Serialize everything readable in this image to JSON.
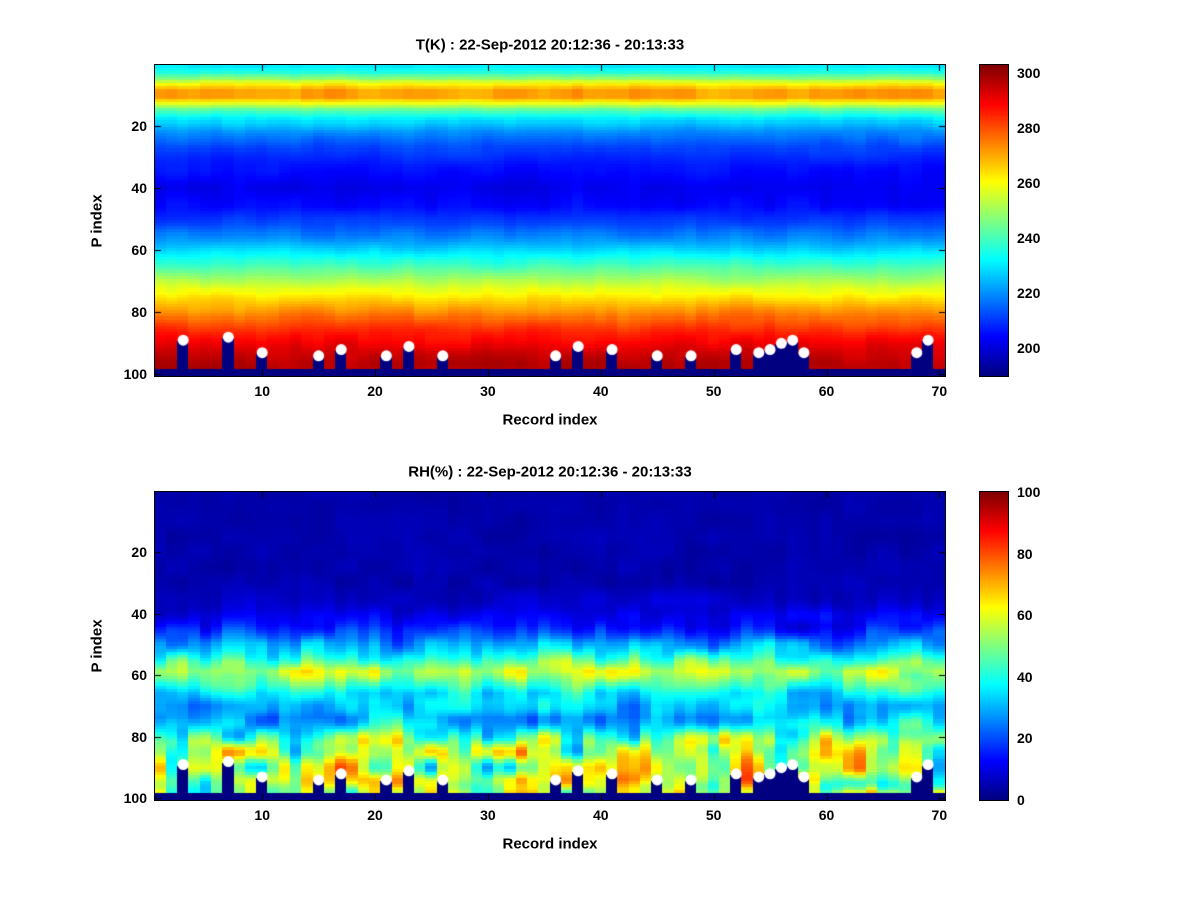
{
  "figure": {
    "background": "#ffffff",
    "text_color": "#000000"
  },
  "chart_data": [
    {
      "type": "heatmap",
      "title": "T(K) : 22-Sep-2012 20:12:36 - 20:13:33",
      "xlabel": "Record index",
      "ylabel": "P index",
      "units": "K",
      "x_range": [
        1,
        70
      ],
      "y_range": [
        1,
        100
      ],
      "y_axis_direction": "down",
      "x_ticks": [
        10,
        20,
        30,
        40,
        50,
        60,
        70
      ],
      "y_ticks": [
        20,
        40,
        60,
        80,
        100
      ],
      "grid": false,
      "colormap": "jet",
      "clim": [
        190,
        303
      ],
      "value_clamp": [
        190,
        303
      ],
      "colorbar_ticks": [
        200,
        220,
        240,
        260,
        280,
        300
      ],
      "colorbar_position": "right",
      "profile_points": [
        [
          1,
          230
        ],
        [
          3,
          236
        ],
        [
          5,
          248
        ],
        [
          7,
          262
        ],
        [
          9,
          271
        ],
        [
          11,
          271
        ],
        [
          13,
          258
        ],
        [
          15,
          243
        ],
        [
          18,
          230
        ],
        [
          22,
          220
        ],
        [
          27,
          212
        ],
        [
          33,
          206
        ],
        [
          40,
          202
        ],
        [
          46,
          205
        ],
        [
          52,
          212
        ],
        [
          57,
          221
        ],
        [
          62,
          232
        ],
        [
          67,
          244
        ],
        [
          72,
          256
        ],
        [
          77,
          267
        ],
        [
          82,
          277
        ],
        [
          87,
          286
        ],
        [
          92,
          293
        ],
        [
          97,
          297
        ],
        [
          100,
          297
        ]
      ],
      "noise_amp_points": [
        [
          1,
          2
        ],
        [
          8,
          4
        ],
        [
          14,
          3
        ],
        [
          30,
          2.5
        ],
        [
          60,
          3
        ],
        [
          80,
          3.5
        ],
        [
          100,
          3
        ]
      ],
      "noise_seed": 11,
      "surface_default_p": 98,
      "below_surface": "no-data-rendered-as-colormap-minimum",
      "surface_markers": {
        "color": "#ffffff",
        "shape": "circle",
        "points": [
          [
            3,
            89
          ],
          [
            7,
            88
          ],
          [
            10,
            93
          ],
          [
            15,
            94
          ],
          [
            17,
            92
          ],
          [
            21,
            94
          ],
          [
            23,
            91
          ],
          [
            26,
            94
          ],
          [
            36,
            94
          ],
          [
            38,
            91
          ],
          [
            41,
            92
          ],
          [
            45,
            94
          ],
          [
            48,
            94
          ],
          [
            52,
            92
          ],
          [
            54,
            93
          ],
          [
            55,
            92
          ],
          [
            56,
            90
          ],
          [
            57,
            89
          ],
          [
            58,
            93
          ],
          [
            68,
            93
          ],
          [
            69,
            89
          ]
        ]
      }
    },
    {
      "type": "heatmap",
      "title": "RH(%) : 22-Sep-2012 20:12:36 - 20:13:33",
      "xlabel": "Record index",
      "ylabel": "P index",
      "units": "%",
      "x_range": [
        1,
        70
      ],
      "y_range": [
        1,
        100
      ],
      "y_axis_direction": "down",
      "x_ticks": [
        10,
        20,
        30,
        40,
        50,
        60,
        70
      ],
      "y_ticks": [
        20,
        40,
        60,
        80,
        100
      ],
      "grid": false,
      "colormap": "jet",
      "clim": [
        0,
        100
      ],
      "value_clamp": [
        0,
        100
      ],
      "colorbar_ticks": [
        0,
        20,
        40,
        60,
        80,
        100
      ],
      "colorbar_position": "right",
      "profile_points": [
        [
          1,
          4
        ],
        [
          30,
          5
        ],
        [
          38,
          8
        ],
        [
          44,
          14
        ],
        [
          48,
          22
        ],
        [
          52,
          33
        ],
        [
          56,
          48
        ],
        [
          59,
          55
        ],
        [
          62,
          48
        ],
        [
          66,
          36
        ],
        [
          70,
          30
        ],
        [
          74,
          30
        ],
        [
          78,
          38
        ],
        [
          82,
          50
        ],
        [
          86,
          55
        ],
        [
          90,
          58
        ],
        [
          94,
          60
        ],
        [
          97,
          55
        ],
        [
          100,
          55
        ]
      ],
      "noise_amp_points": [
        [
          1,
          1.5
        ],
        [
          35,
          3
        ],
        [
          42,
          7
        ],
        [
          50,
          14
        ],
        [
          58,
          17
        ],
        [
          64,
          12
        ],
        [
          72,
          13
        ],
        [
          78,
          22
        ],
        [
          83,
          30
        ],
        [
          88,
          34
        ],
        [
          100,
          34
        ]
      ],
      "noise_seed": 29,
      "surface_default_p": 98,
      "below_surface": "no-data-rendered-as-colormap-minimum",
      "surface_markers": {
        "color": "#ffffff",
        "shape": "circle",
        "points": [
          [
            3,
            89
          ],
          [
            7,
            88
          ],
          [
            10,
            93
          ],
          [
            15,
            94
          ],
          [
            17,
            92
          ],
          [
            21,
            94
          ],
          [
            23,
            91
          ],
          [
            26,
            94
          ],
          [
            36,
            94
          ],
          [
            38,
            91
          ],
          [
            41,
            92
          ],
          [
            45,
            94
          ],
          [
            48,
            94
          ],
          [
            52,
            92
          ],
          [
            54,
            93
          ],
          [
            55,
            92
          ],
          [
            56,
            90
          ],
          [
            57,
            89
          ],
          [
            58,
            93
          ],
          [
            68,
            93
          ],
          [
            69,
            89
          ]
        ]
      }
    }
  ]
}
